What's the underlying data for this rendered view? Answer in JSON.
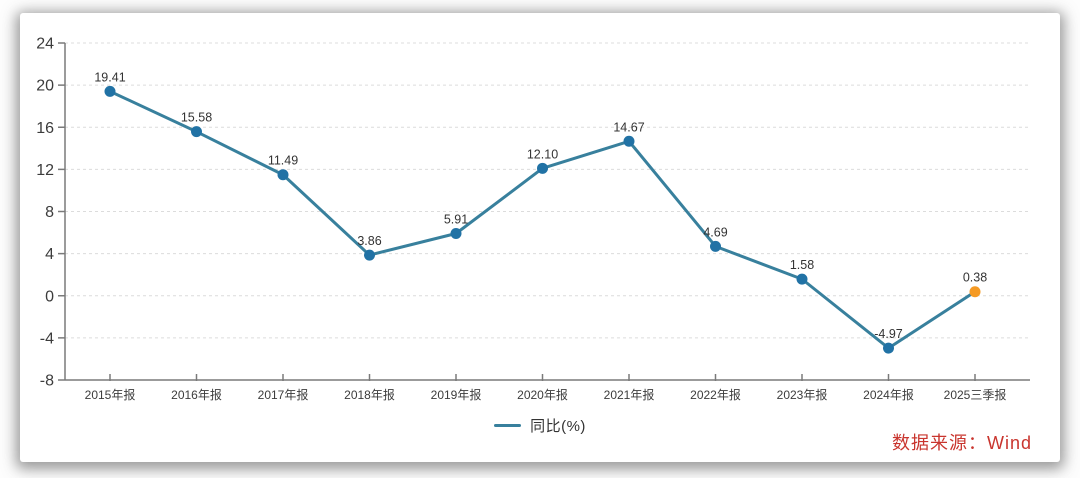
{
  "chart_data": {
    "type": "line",
    "categories": [
      "2015年报",
      "2016年报",
      "2017年报",
      "2018年报",
      "2019年报",
      "2020年报",
      "2021年报",
      "2022年报",
      "2023年报",
      "2024年报",
      "2025三季报"
    ],
    "series": [
      {
        "name": "同比(%)",
        "values": [
          19.41,
          15.58,
          11.49,
          3.86,
          5.91,
          12.1,
          14.67,
          4.69,
          1.58,
          -4.97,
          0.38
        ]
      }
    ],
    "title": "",
    "xlabel": "",
    "ylabel": "",
    "ylim": [
      -8,
      24
    ],
    "yticks": [
      24,
      20,
      16,
      12,
      8,
      4,
      0,
      -4,
      -8
    ],
    "grid": "horizontal-dashed",
    "legend_position": "bottom-center",
    "point_label_decimals": 2,
    "highlight_last_point": true
  },
  "legend": {
    "label": "同比(%)"
  },
  "source": {
    "label": "数据来源：Wind"
  },
  "colors": {
    "line": "#38809d",
    "marker": "#2172a5",
    "last_marker": "#f59a23",
    "grid": "#dcdcdc",
    "axis": "#7a7a7a",
    "tick_label": "#3c3c3c",
    "point_label": "#333333",
    "legend_text": "#333333",
    "source_text": "#c9352e"
  }
}
